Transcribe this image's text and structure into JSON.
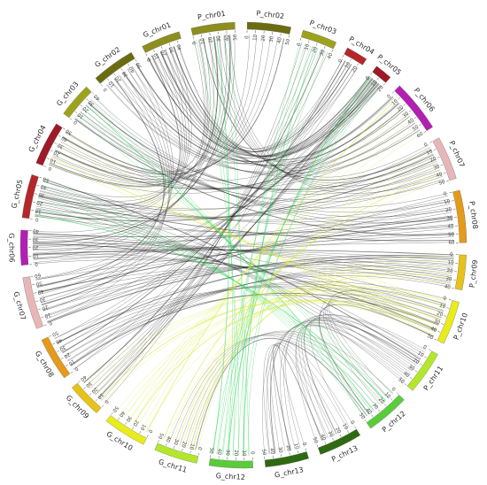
{
  "diagram": {
    "type": "circos-synteny",
    "chromosomes": [
      {
        "name": "G_chr01",
        "length": 45,
        "color": "#8e8e1e"
      },
      {
        "name": "P_chr01",
        "length": 50,
        "color": "#8e8e1e"
      },
      {
        "name": "P_chr02",
        "length": 50,
        "color": "#6b6b10"
      },
      {
        "name": "P_chr03",
        "length": 40,
        "color": "#9da21c"
      },
      {
        "name": "P_chr04",
        "length": 25,
        "color": "#b5262a"
      },
      {
        "name": "P_chr05",
        "length": 20,
        "color": "#9e1a26"
      },
      {
        "name": "P_chr06",
        "length": 60,
        "color": "#b21fb3"
      },
      {
        "name": "P_chr07",
        "length": 50,
        "color": "#e7b7b7"
      },
      {
        "name": "P_chr08",
        "length": 60,
        "color": "#e49a1a"
      },
      {
        "name": "P_chr09",
        "length": 40,
        "color": "#e6c21a"
      },
      {
        "name": "P_chr10",
        "length": 50,
        "color": "#e9ec1c"
      },
      {
        "name": "P_chr11",
        "length": 50,
        "color": "#b3e82a"
      },
      {
        "name": "P_chr12",
        "length": 50,
        "color": "#5acc3c"
      },
      {
        "name": "P_chr13",
        "length": 50,
        "color": "#2e6a12"
      },
      {
        "name": "G_chr13",
        "length": 50,
        "color": "#2e6a12"
      },
      {
        "name": "G_chr12",
        "length": 50,
        "color": "#5acc3c"
      },
      {
        "name": "G_chr11",
        "length": 50,
        "color": "#b3e82a"
      },
      {
        "name": "G_chr10",
        "length": 50,
        "color": "#e9ec1c"
      },
      {
        "name": "G_chr09",
        "length": 40,
        "color": "#e6c21a"
      },
      {
        "name": "G_chr08",
        "length": 50,
        "color": "#e49a1a"
      },
      {
        "name": "G_chr07",
        "length": 60,
        "color": "#e7b7b7"
      },
      {
        "name": "G_chr06",
        "length": 40,
        "color": "#b21fb3"
      },
      {
        "name": "G_chr05",
        "length": 50,
        "color": "#b5262a"
      },
      {
        "name": "G_chr04",
        "length": 50,
        "color": "#9e1a26"
      },
      {
        "name": "G_chr03",
        "length": 40,
        "color": "#9da21c"
      },
      {
        "name": "G_chr02",
        "length": 50,
        "color": "#6b6b10"
      }
    ],
    "links": [
      {
        "from": "G_chr01",
        "to": "P_chr05",
        "color": "#222222"
      },
      {
        "from": "G_chr01",
        "to": "P_chr04",
        "color": "#222222"
      },
      {
        "from": "G_chr01",
        "to": "P_chr06",
        "color": "#222222"
      },
      {
        "from": "G_chr01",
        "to": "G_chr05",
        "color": "#222222"
      },
      {
        "from": "P_chr01",
        "to": "G_chr04",
        "color": "#222222"
      },
      {
        "from": "P_chr01",
        "to": "G_chr06",
        "color": "#222222"
      },
      {
        "from": "P_chr01",
        "to": "P_chr07",
        "color": "#222222"
      },
      {
        "from": "G_chr02",
        "to": "P_chr05",
        "color": "#222222"
      },
      {
        "from": "G_chr02",
        "to": "P_chr06",
        "color": "#222222"
      },
      {
        "from": "G_chr02",
        "to": "G_chr07",
        "color": "#222222"
      },
      {
        "from": "G_chr03",
        "to": "P_chr07",
        "color": "#222222"
      },
      {
        "from": "G_chr03",
        "to": "P_chr08",
        "color": "#222222"
      },
      {
        "from": "G_chr04",
        "to": "P_chr06",
        "color": "#222222"
      },
      {
        "from": "G_chr04",
        "to": "P_chr02",
        "color": "#222222"
      },
      {
        "from": "G_chr05",
        "to": "P_chr07",
        "color": "#222222"
      },
      {
        "from": "G_chr05",
        "to": "P_chr08",
        "color": "#222222"
      },
      {
        "from": "G_chr06",
        "to": "P_chr08",
        "color": "#222222"
      },
      {
        "from": "G_chr06",
        "to": "P_chr09",
        "color": "#222222"
      },
      {
        "from": "G_chr07",
        "to": "P_chr08",
        "color": "#222222"
      },
      {
        "from": "G_chr07",
        "to": "P_chr09",
        "color": "#222222"
      },
      {
        "from": "G_chr07",
        "to": "P_chr05",
        "color": "#222222"
      },
      {
        "from": "G_chr08",
        "to": "P_chr09",
        "color": "#222222"
      },
      {
        "from": "G_chr08",
        "to": "P_chr10",
        "color": "#222222"
      },
      {
        "from": "G_chr08",
        "to": "P_chr04",
        "color": "#222222"
      },
      {
        "from": "G_chr09",
        "to": "P_chr03",
        "color": "#222222"
      },
      {
        "from": "G_chr09",
        "to": "P_chr05",
        "color": "#222222"
      },
      {
        "from": "G_chr06",
        "to": "P_chr10",
        "color": "#222222"
      },
      {
        "from": "G_chr05",
        "to": "P_chr11",
        "color": "#222222"
      },
      {
        "from": "G_chr13",
        "to": "P_chr13",
        "color": "#555555"
      },
      {
        "from": "G_chr13",
        "to": "P_chr11",
        "color": "#555555"
      },
      {
        "from": "G_chr11",
        "to": "P_chr12",
        "color": "#555555"
      },
      {
        "from": "P_chr13",
        "to": "P_chr11",
        "color": "#555555"
      },
      {
        "from": "P_chr12",
        "to": "P_chr10",
        "color": "#555555"
      },
      {
        "from": "G_chr12",
        "to": "P_chr03",
        "color": "#2bd45a"
      },
      {
        "from": "G_chr12",
        "to": "P_chr05",
        "color": "#2bd45a"
      },
      {
        "from": "G_chr12",
        "to": "P_chr01",
        "color": "#2bd45a"
      },
      {
        "from": "P_chr12",
        "to": "G_chr05",
        "color": "#2bd45a"
      },
      {
        "from": "P_chr12",
        "to": "G_chr03",
        "color": "#2bd45a"
      },
      {
        "from": "G_chr10",
        "to": "P_chr06",
        "color": "#d8e838"
      },
      {
        "from": "G_chr10",
        "to": "P_chr10",
        "color": "#d8e838"
      },
      {
        "from": "P_chr10",
        "to": "G_chr09",
        "color": "#d8e838"
      },
      {
        "from": "G_chr11",
        "to": "P_chr09",
        "color": "#d8e838"
      },
      {
        "from": "P_chr10",
        "to": "G_chr04",
        "color": "#d8e838"
      },
      {
        "from": "G_chr11",
        "to": "P_chr07",
        "color": "#d8e838"
      }
    ]
  }
}
